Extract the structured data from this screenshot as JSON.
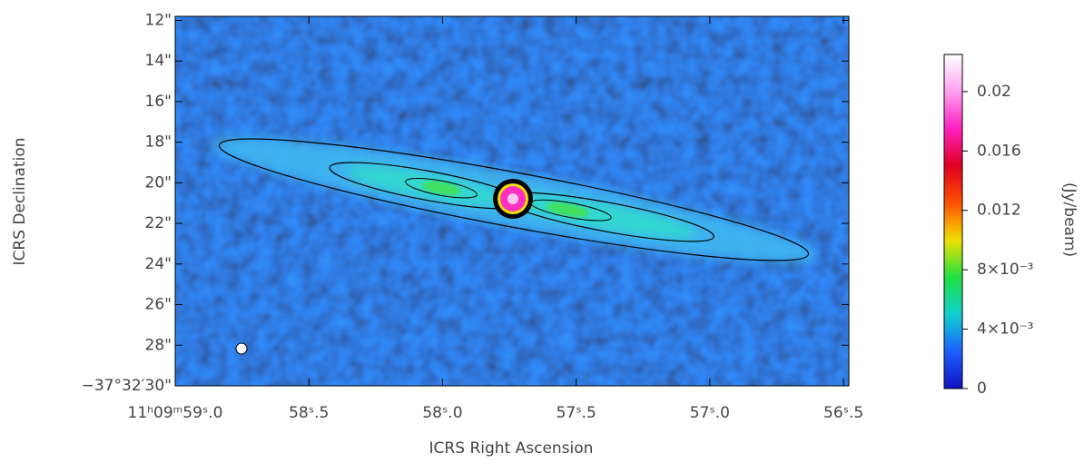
{
  "chart_data": {
    "type": "image",
    "xlabel": "ICRS Right Ascension",
    "ylabel": "ICRS Declination",
    "xlim": [
      59.0,
      56.48
    ],
    "xticks": [
      {
        "value": 59.0,
        "label": "11ʰ09ᵐ59ˢ.0"
      },
      {
        "value": 58.5,
        "label": "58ˢ.5"
      },
      {
        "value": 58.0,
        "label": "58ˢ.0"
      },
      {
        "value": 57.5,
        "label": "57ˢ.5"
      },
      {
        "value": 57.0,
        "label": "57ˢ.0"
      },
      {
        "value": 56.5,
        "label": "56ˢ.5"
      }
    ],
    "ylim": [
      30,
      11.8
    ],
    "yticks": [
      {
        "value": 12,
        "label": "12\""
      },
      {
        "value": 14,
        "label": "14\""
      },
      {
        "value": 16,
        "label": "16\""
      },
      {
        "value": 18,
        "label": "18\""
      },
      {
        "value": 20,
        "label": "20\""
      },
      {
        "value": 22,
        "label": "22\""
      },
      {
        "value": 24,
        "label": "24\""
      },
      {
        "value": 26,
        "label": "26\""
      },
      {
        "value": 28,
        "label": "28\""
      },
      {
        "value": 30,
        "label": "−37°32′30\""
      }
    ],
    "colorbar": {
      "label": "(Jy/beam)",
      "lim": [
        0,
        0.0225
      ],
      "ticks": [
        0,
        {
          "value": 0.004,
          "label": "4×10⁻³"
        },
        {
          "value": 0.008,
          "label": "8×10⁻³"
        },
        0.012,
        0.016,
        0.02
      ],
      "colormap": [
        "#1010c0",
        "#1e60ff",
        "#10d0d0",
        "#20e040",
        "#f0e000",
        "#ff5000",
        "#e00020",
        "#ff20c0",
        "#ffa0f0",
        "#ffffff"
      ]
    }
  }
}
